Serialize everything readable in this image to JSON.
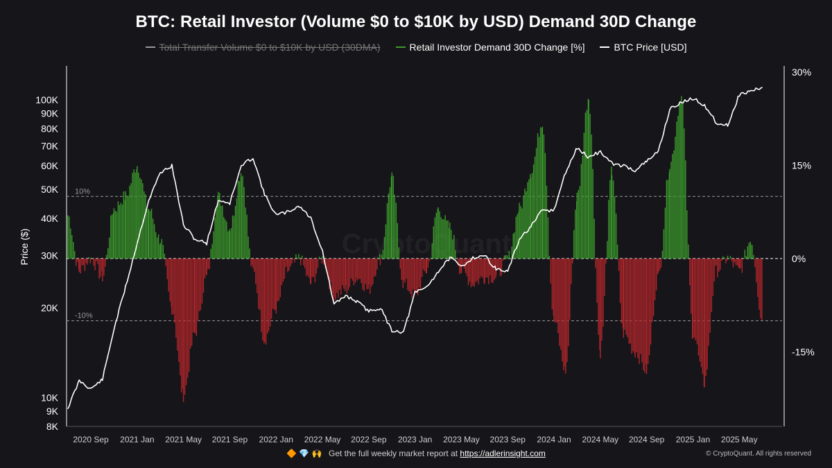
{
  "title": "BTC: Retail Investor (Volume $0 to $10K by USD) Demand 30D Change",
  "legend": [
    {
      "label": "Total Transfer Volume $0 to $10K by USD (30DMA)",
      "color": "#9a9a9a",
      "disabled": true
    },
    {
      "label": "Retail Investor Demand 30D Change [%]",
      "color": "#3c9a2c",
      "disabled": false
    },
    {
      "label": "BTC Price [USD]",
      "color": "#ffffff",
      "disabled": false
    }
  ],
  "watermark": "CryptoQuant",
  "footer": {
    "icons": "🔶 💎 🙌",
    "text": "Get the full weekly market report at",
    "link": "https://adlerinsight.com",
    "copyright": "© CryptoQuant. All rights reserved"
  },
  "chart_data": {
    "type": "line",
    "x_tick_labels": [
      "2020 Sep",
      "2021 Jan",
      "2021 May",
      "2021 Sep",
      "2022 Jan",
      "2022 May",
      "2022 Sep",
      "2023 Jan",
      "2023 May",
      "2023 Sep",
      "2024 Jan",
      "2024 May",
      "2024 Sep",
      "2025 Jan",
      "2025 May"
    ],
    "x_range": [
      "2020-07",
      "2025-07"
    ],
    "left_axis": {
      "label": "Price ($)",
      "scale": "log",
      "ylim": [
        8000,
        130000
      ],
      "tick_values": [
        8000,
        9000,
        10000,
        20000,
        30000,
        40000,
        50000,
        60000,
        70000,
        80000,
        90000,
        100000
      ],
      "tick_labels": [
        "8K",
        "9K",
        "10K",
        "20K",
        "30K",
        "40K",
        "50K",
        "60K",
        "70K",
        "80K",
        "90K",
        "100K"
      ]
    },
    "right_axis": {
      "label": "",
      "ylim": [
        -27,
        31
      ],
      "tick_values": [
        30,
        15,
        0,
        -15
      ],
      "tick_labels": [
        "30%",
        "15%",
        "0%",
        "-15%"
      ]
    },
    "reference_lines": [
      {
        "value": 10,
        "label": "10%"
      },
      {
        "value": 0,
        "label": ""
      },
      {
        "value": -10,
        "label": "-10%"
      }
    ],
    "colors": {
      "positive": "#3c9a2c",
      "negative": "#b3262b",
      "price": "#ffffff"
    },
    "series": [
      {
        "name": "BTC Price [USD]",
        "axis": "left",
        "x": [
          "2020-07",
          "2020-08",
          "2020-09",
          "2020-10",
          "2020-11",
          "2020-12",
          "2021-01",
          "2021-02",
          "2021-03",
          "2021-04",
          "2021-05",
          "2021-06",
          "2021-07",
          "2021-08",
          "2021-09",
          "2021-10",
          "2021-11",
          "2021-12",
          "2022-01",
          "2022-02",
          "2022-03",
          "2022-04",
          "2022-05",
          "2022-06",
          "2022-07",
          "2022-08",
          "2022-09",
          "2022-10",
          "2022-11",
          "2022-12",
          "2023-01",
          "2023-02",
          "2023-03",
          "2023-04",
          "2023-05",
          "2023-06",
          "2023-07",
          "2023-08",
          "2023-09",
          "2023-10",
          "2023-11",
          "2023-12",
          "2024-01",
          "2024-02",
          "2024-03",
          "2024-04",
          "2024-05",
          "2024-06",
          "2024-07",
          "2024-08",
          "2024-09",
          "2024-10",
          "2024-11",
          "2024-12",
          "2025-01",
          "2025-02",
          "2025-03",
          "2025-04",
          "2025-05",
          "2025-06",
          "2025-07"
        ],
        "values": [
          9200,
          11400,
          10700,
          11500,
          17000,
          23500,
          33000,
          46000,
          57000,
          60000,
          38000,
          34000,
          33000,
          46000,
          45000,
          60000,
          64000,
          48000,
          41000,
          42000,
          44000,
          40000,
          31000,
          20500,
          22000,
          21000,
          19500,
          20000,
          16800,
          16600,
          22500,
          23500,
          26500,
          29500,
          27500,
          29500,
          30000,
          27000,
          26500,
          34000,
          37500,
          42500,
          42500,
          57000,
          69000,
          64000,
          67000,
          61000,
          60000,
          58000,
          62000,
          67000,
          93000,
          98000,
          101000,
          96000,
          84000,
          82000,
          104000,
          107000,
          110000
        ]
      },
      {
        "name": "Retail Investor Demand 30D Change [%]",
        "axis": "right",
        "x": [
          "2020-07",
          "2020-08",
          "2020-09",
          "2020-10",
          "2020-11",
          "2020-12",
          "2021-01",
          "2021-02",
          "2021-03",
          "2021-04",
          "2021-05",
          "2021-06",
          "2021-07",
          "2021-08",
          "2021-09",
          "2021-10",
          "2021-11",
          "2021-12",
          "2022-01",
          "2022-02",
          "2022-03",
          "2022-04",
          "2022-05",
          "2022-06",
          "2022-07",
          "2022-08",
          "2022-09",
          "2022-10",
          "2022-11",
          "2022-12",
          "2023-01",
          "2023-02",
          "2023-03",
          "2023-04",
          "2023-05",
          "2023-06",
          "2023-07",
          "2023-08",
          "2023-09",
          "2023-10",
          "2023-11",
          "2023-12",
          "2024-01",
          "2024-02",
          "2024-03",
          "2024-04",
          "2024-05",
          "2024-06",
          "2024-07",
          "2024-08",
          "2024-09",
          "2024-10",
          "2024-11",
          "2024-12",
          "2025-01",
          "2025-02",
          "2025-03",
          "2025-04",
          "2025-05",
          "2025-06",
          "2025-07"
        ],
        "values": [
          7,
          -2,
          0,
          -3,
          8,
          10,
          15,
          8,
          3,
          -8,
          -22,
          -12,
          -3,
          10,
          5,
          14,
          -2,
          -13,
          -8,
          -2,
          0,
          -4,
          0,
          -6,
          -5,
          -3,
          -5,
          0,
          13,
          -4,
          -6,
          -2,
          8,
          5,
          -2,
          -4,
          -3,
          -3,
          0,
          8,
          14,
          22,
          -10,
          -18,
          10,
          26,
          -15,
          14,
          -12,
          -15,
          -18,
          -3,
          15,
          26,
          -12,
          -20,
          -2,
          0,
          -2,
          3,
          -10
        ]
      }
    ]
  }
}
